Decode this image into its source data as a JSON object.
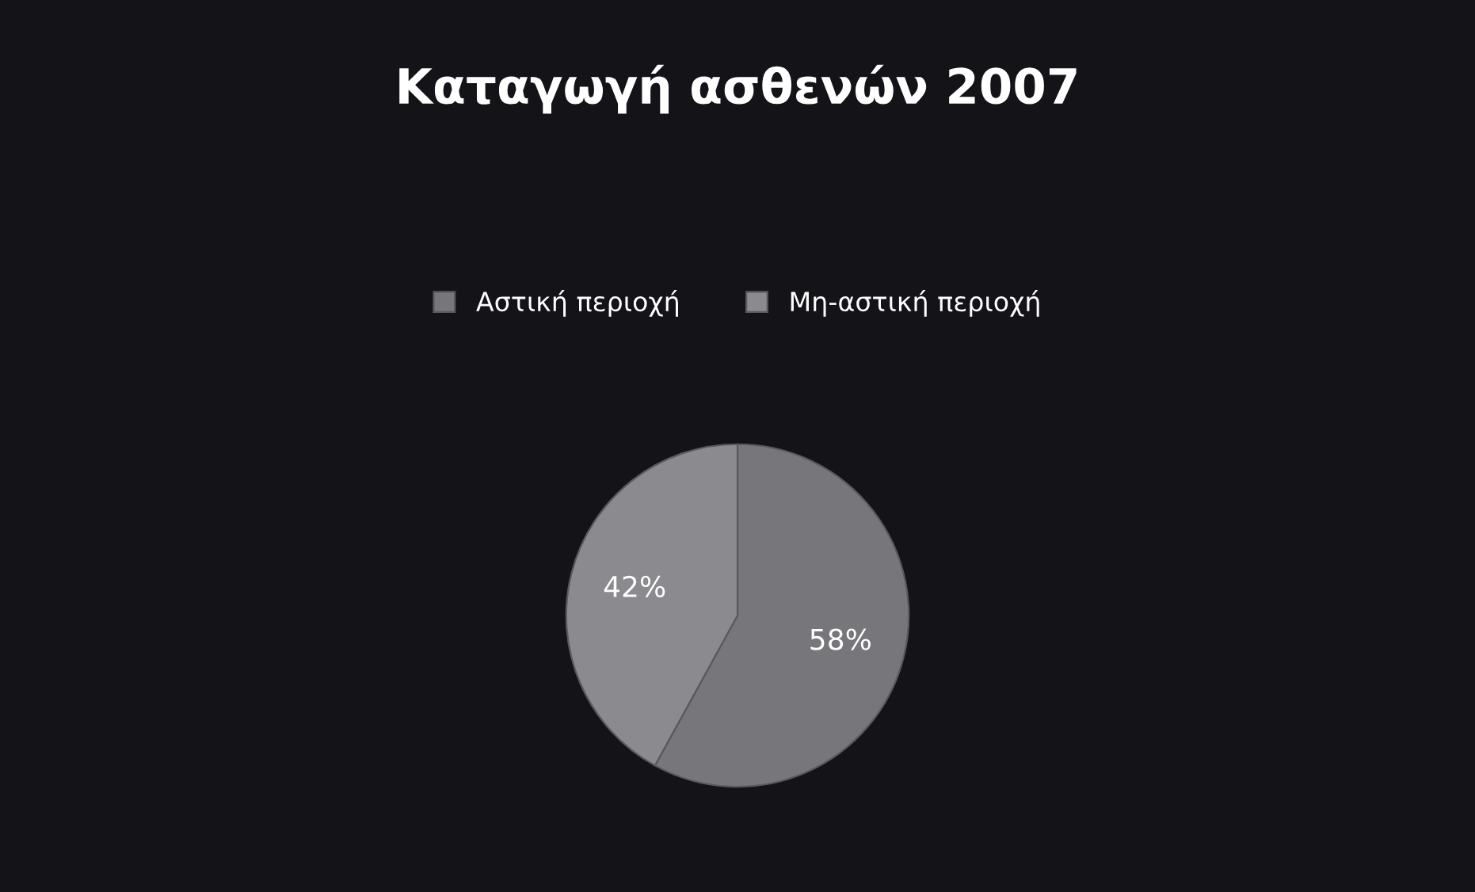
{
  "chart_data": {
    "type": "pie",
    "title": "Καταγωγή ασθενών 2007",
    "categories": [
      "Αστική περιοχή",
      "Μη-αστική περιοχή"
    ],
    "values": [
      58,
      42
    ],
    "value_labels": [
      "58%",
      "42%"
    ],
    "colors": [
      "#77777b",
      "#8a8a8f"
    ],
    "legend": "top"
  }
}
